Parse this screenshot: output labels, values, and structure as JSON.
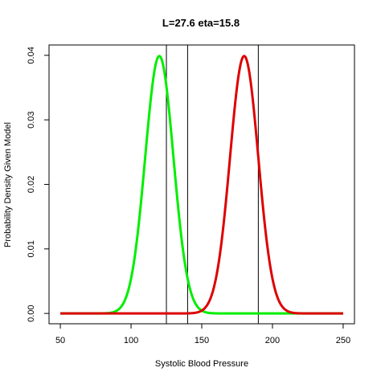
{
  "chart_data": {
    "type": "line",
    "title": "L=27.6 eta=15.8",
    "xlabel": "Systolic Blood Pressure",
    "ylabel": "Probability Density Given Model",
    "xlim": [
      42,
      258
    ],
    "ylim": [
      -0.0016,
      0.0416
    ],
    "x_ticks": [
      50,
      100,
      150,
      200,
      250
    ],
    "y_ticks": [
      0.0,
      0.01,
      0.02,
      0.03,
      0.04
    ],
    "x_tick_labels": [
      "50",
      "100",
      "150",
      "200",
      "250"
    ],
    "y_tick_labels": [
      "0.00",
      "0.01",
      "0.02",
      "0.03",
      "0.04"
    ],
    "grid": false,
    "legend": "none",
    "series": [
      {
        "mean": 120,
        "sd": 10,
        "x_range": [
          50,
          250
        ],
        "color": "#00ee00"
      },
      {
        "mean": 180,
        "sd": 10,
        "x_range": [
          50,
          250
        ],
        "color": "#dd0000"
      }
    ],
    "vertical_lines": [
      125,
      140,
      190
    ]
  }
}
